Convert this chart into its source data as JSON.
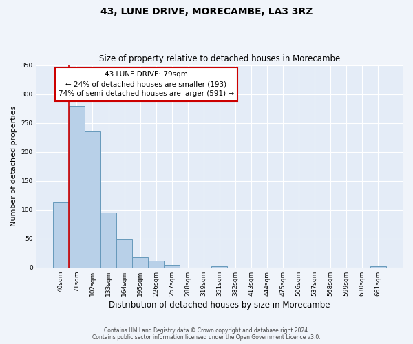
{
  "title": "43, LUNE DRIVE, MORECAMBE, LA3 3RZ",
  "subtitle": "Size of property relative to detached houses in Morecambe",
  "xlabel": "Distribution of detached houses by size in Morecambe",
  "ylabel": "Number of detached properties",
  "bar_labels": [
    "40sqm",
    "71sqm",
    "102sqm",
    "133sqm",
    "164sqm",
    "195sqm",
    "226sqm",
    "257sqm",
    "288sqm",
    "319sqm",
    "351sqm",
    "382sqm",
    "413sqm",
    "444sqm",
    "475sqm",
    "506sqm",
    "537sqm",
    "568sqm",
    "599sqm",
    "630sqm",
    "661sqm"
  ],
  "bar_values": [
    113,
    279,
    235,
    95,
    49,
    18,
    12,
    5,
    0,
    0,
    2,
    0,
    0,
    0,
    0,
    0,
    0,
    0,
    0,
    0,
    2
  ],
  "bar_color": "#b8d0e8",
  "bar_edge_color": "#6699bb",
  "ylim": [
    0,
    350
  ],
  "yticks": [
    0,
    50,
    100,
    150,
    200,
    250,
    300,
    350
  ],
  "property_line_x": 0.5,
  "property_line_color": "#cc0000",
  "annotation_title": "43 LUNE DRIVE: 79sqm",
  "annotation_line1": "← 24% of detached houses are smaller (193)",
  "annotation_line2": "74% of semi-detached houses are larger (591) →",
  "annotation_box_color": "#cc0000",
  "footer1": "Contains HM Land Registry data © Crown copyright and database right 2024.",
  "footer2": "Contains public sector information licensed under the Open Government Licence v3.0.",
  "background_color": "#f0f4fa",
  "plot_bg_color": "#e4ecf7"
}
